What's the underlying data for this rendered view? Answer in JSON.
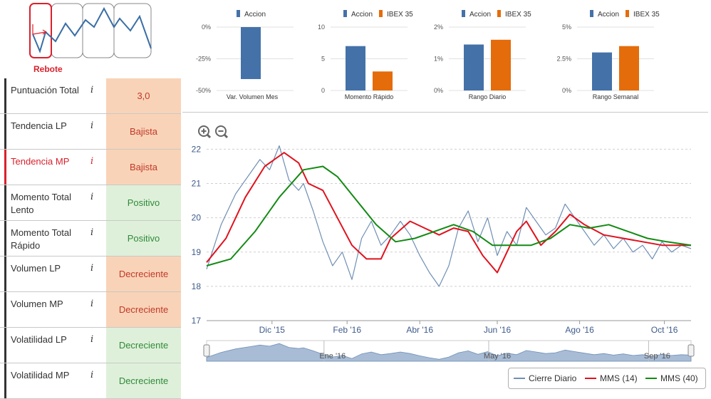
{
  "signal": {
    "label": "Rebote"
  },
  "scores": [
    {
      "label": "Puntuación Total",
      "value": "3,0",
      "kind": "neg",
      "active": false
    },
    {
      "label": "Tendencia LP",
      "value": "Bajista",
      "kind": "neg",
      "active": false
    },
    {
      "label": "Tendencia MP",
      "value": "Bajista",
      "kind": "neg",
      "active": true
    },
    {
      "label": "Momento Total Lento",
      "value": "Positivo",
      "kind": "pos",
      "active": false
    },
    {
      "label": "Momento Total Rápido",
      "value": "Positivo",
      "kind": "pos",
      "active": false
    },
    {
      "label": "Volumen LP",
      "value": "Decreciente",
      "kind": "neg",
      "active": false
    },
    {
      "label": "Volumen MP",
      "value": "Decreciente",
      "kind": "neg",
      "active": false
    },
    {
      "label": "Volatilidad LP",
      "value": "Decreciente",
      "kind": "pos",
      "active": false
    },
    {
      "label": "Volatilidad MP",
      "value": "Decreciente",
      "kind": "pos",
      "active": false
    }
  ],
  "info_glyph": "i",
  "colors": {
    "accion": "#4472a8",
    "ibex": "#e46c0a",
    "cierre": "#6f8fb5",
    "mms14": "#e0121e",
    "mms40": "#138a13",
    "navigator": "#a8bcd6"
  },
  "chart_data": [
    {
      "type": "bar",
      "xlabel": "Var. Volumen Mes",
      "series": [
        {
          "name": "Accion",
          "values": [
            -41
          ]
        }
      ],
      "ylim": [
        -50,
        0
      ],
      "ticks": [
        "0%",
        "-25%",
        "-50%"
      ],
      "tick_values": [
        0,
        -25,
        -50
      ]
    },
    {
      "type": "bar",
      "xlabel": "Momento Rápido",
      "series": [
        {
          "name": "Accion",
          "values": [
            7
          ]
        },
        {
          "name": "IBEX 35",
          "values": [
            3
          ]
        }
      ],
      "ylim": [
        0,
        10
      ],
      "ticks": [
        "10",
        "5",
        "0"
      ],
      "tick_values": [
        10,
        5,
        0
      ]
    },
    {
      "type": "bar",
      "xlabel": "Rango Diario",
      "series": [
        {
          "name": "Accion",
          "values": [
            1.45
          ]
        },
        {
          "name": "IBEX 35",
          "values": [
            1.6
          ]
        }
      ],
      "ylim": [
        0,
        2
      ],
      "ticks": [
        "2%",
        "1%",
        "0%"
      ],
      "tick_values": [
        2,
        1,
        0
      ]
    },
    {
      "type": "bar",
      "xlabel": "Rango Semanal",
      "series": [
        {
          "name": "Accion",
          "values": [
            3.0
          ]
        },
        {
          "name": "IBEX 35",
          "values": [
            3.5
          ]
        }
      ],
      "ylim": [
        0,
        5
      ],
      "ticks": [
        "5%",
        "2.5%",
        "0%"
      ],
      "tick_values": [
        5,
        2.5,
        0
      ]
    },
    {
      "type": "line",
      "x_ticks": [
        "Dic '15",
        "Feb '16",
        "Abr '16",
        "Jun '16",
        "Ago '16",
        "Oct '16"
      ],
      "y_ticks": [
        "22",
        "21",
        "20",
        "19",
        "18",
        "17"
      ],
      "ylim": [
        17,
        22.3
      ],
      "navigator_labels": [
        "Ene '16",
        "May '16",
        "Sep '16"
      ],
      "legend": [
        "Cierre Diario",
        "MMS (14)",
        "MMS (40)"
      ],
      "series": [
        {
          "name": "Cierre Diario",
          "x": [
            0,
            0.03,
            0.06,
            0.09,
            0.11,
            0.13,
            0.15,
            0.17,
            0.19,
            0.2,
            0.22,
            0.24,
            0.26,
            0.28,
            0.3,
            0.32,
            0.34,
            0.36,
            0.38,
            0.4,
            0.42,
            0.44,
            0.46,
            0.48,
            0.5,
            0.52,
            0.54,
            0.56,
            0.58,
            0.6,
            0.62,
            0.64,
            0.66,
            0.68,
            0.7,
            0.72,
            0.74,
            0.76,
            0.78,
            0.8,
            0.82,
            0.84,
            0.86,
            0.88,
            0.9,
            0.92,
            0.94,
            0.96,
            0.98,
            1.0
          ],
          "values": [
            18.5,
            19.8,
            20.7,
            21.3,
            21.7,
            21.4,
            22.1,
            21.1,
            20.8,
            21.0,
            20.2,
            19.3,
            18.6,
            19.0,
            18.2,
            19.4,
            19.9,
            19.2,
            19.5,
            19.9,
            19.5,
            18.9,
            18.4,
            18.0,
            18.6,
            19.7,
            20.2,
            19.3,
            20.0,
            18.9,
            19.6,
            19.2,
            20.3,
            19.9,
            19.5,
            19.7,
            20.4,
            20.0,
            19.6,
            19.2,
            19.5,
            19.1,
            19.4,
            19.0,
            19.2,
            18.8,
            19.3,
            19.0,
            19.2,
            19.1
          ]
        },
        {
          "name": "MMS (14)",
          "x": [
            0,
            0.04,
            0.08,
            0.12,
            0.16,
            0.19,
            0.21,
            0.24,
            0.27,
            0.3,
            0.33,
            0.36,
            0.38,
            0.42,
            0.45,
            0.48,
            0.51,
            0.54,
            0.57,
            0.6,
            0.62,
            0.64,
            0.66,
            0.69,
            0.72,
            0.75,
            0.78,
            0.82,
            0.86,
            0.9,
            0.94,
            1.0
          ],
          "values": [
            18.7,
            19.4,
            20.6,
            21.5,
            21.9,
            21.6,
            21.0,
            20.8,
            20.0,
            19.2,
            18.8,
            18.8,
            19.4,
            19.9,
            19.7,
            19.5,
            19.7,
            19.6,
            18.9,
            18.4,
            19.0,
            19.6,
            19.9,
            19.2,
            19.6,
            20.1,
            19.8,
            19.5,
            19.4,
            19.3,
            19.2,
            19.2
          ]
        },
        {
          "name": "MMS (40)",
          "x": [
            0,
            0.05,
            0.1,
            0.15,
            0.2,
            0.24,
            0.27,
            0.31,
            0.35,
            0.39,
            0.43,
            0.47,
            0.51,
            0.55,
            0.59,
            0.63,
            0.67,
            0.71,
            0.75,
            0.79,
            0.83,
            0.87,
            0.91,
            0.95,
            1.0
          ],
          "values": [
            18.6,
            18.8,
            19.6,
            20.6,
            21.4,
            21.5,
            21.2,
            20.5,
            19.8,
            19.3,
            19.4,
            19.6,
            19.8,
            19.6,
            19.2,
            19.2,
            19.2,
            19.4,
            19.8,
            19.7,
            19.8,
            19.6,
            19.4,
            19.3,
            19.2
          ]
        }
      ]
    }
  ]
}
